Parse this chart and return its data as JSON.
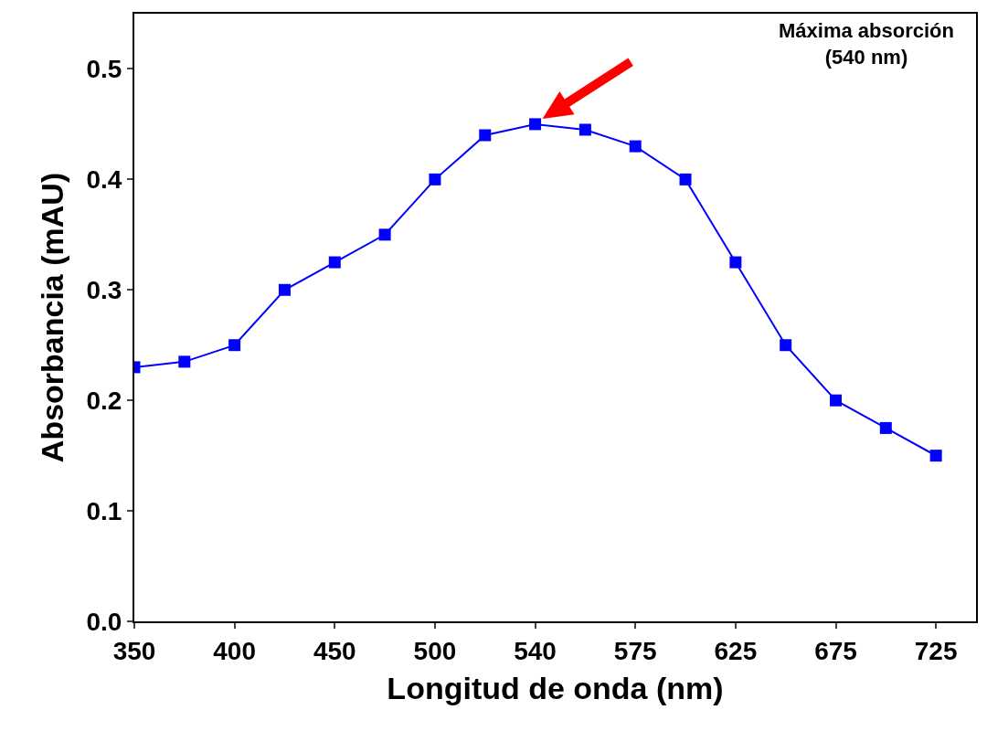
{
  "chart_data": {
    "type": "line",
    "xlabel": "Longitud de onda (nm)",
    "ylabel": "Absorbancia (mAU)",
    "categories": [
      "350",
      null,
      "400",
      null,
      "450",
      null,
      "500",
      null,
      "540",
      null,
      "575",
      null,
      "625",
      null,
      "675",
      null,
      "725"
    ],
    "series": [
      {
        "color": "#0000ff",
        "values": [
          0.23,
          0.235,
          0.25,
          0.3,
          0.325,
          0.35,
          0.4,
          0.44,
          0.45,
          0.445,
          0.43,
          0.4,
          0.325,
          0.25,
          0.2,
          0.175,
          0.15
        ]
      }
    ],
    "ylim": [
      0,
      0.55
    ],
    "yticks": [
      {
        "value": 0,
        "label": "0.0"
      },
      {
        "value": 0.1,
        "label": "0.1"
      },
      {
        "value": 0.2,
        "label": "0.2"
      },
      {
        "value": 0.3,
        "label": "0.3"
      },
      {
        "value": 0.4,
        "label": "0.4"
      },
      {
        "value": 0.5,
        "label": "0.5"
      }
    ],
    "marker": "square",
    "line_style": "solid",
    "legend": false,
    "annotations": [
      "Máxima absorción\n(540 nm)"
    ]
  }
}
